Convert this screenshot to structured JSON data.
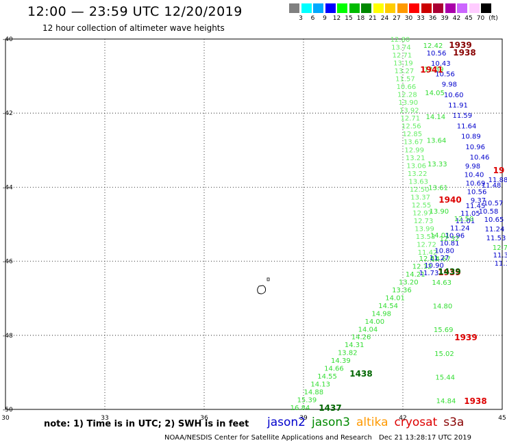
{
  "header": {
    "title": "12:00 — 23:59 UTC 12/20/2019",
    "subtitle": "12 hour collection of altimeter wave heights"
  },
  "legend": {
    "unit": "(ft)",
    "colors": [
      "#808080",
      "#00ffff",
      "#00aaff",
      "#0000ff",
      "#00ff00",
      "#00bb00",
      "#008800",
      "#ffff00",
      "#ffcc00",
      "#ff9900",
      "#ff0000",
      "#cc0000",
      "#aa0033",
      "#aa00aa",
      "#cc66ff",
      "#ffccff",
      "#000000"
    ],
    "labels": [
      "3",
      "6",
      "9",
      "12",
      "15",
      "18",
      "21",
      "24",
      "27",
      "30",
      "33",
      "36",
      "39",
      "42",
      "45",
      "70"
    ]
  },
  "axes": {
    "x_labels": [
      "30",
      "33",
      "36",
      "39",
      "42",
      "45"
    ],
    "y_labels": [
      "-40",
      "-42",
      "-44",
      "-46",
      "-48",
      "-50"
    ]
  },
  "tracks": {
    "jason3_south": {
      "color": "#33dd33",
      "values": [
        "16.84",
        "15.39",
        "14.88",
        "14.13",
        "14.55",
        "14.66",
        "14.39",
        "13.82",
        "14.31",
        "14.26",
        "14.04",
        "14.00",
        "14.98",
        "14.54",
        "14.01",
        "13.36",
        "13.20",
        "14.21",
        "12.12",
        "12.61"
      ]
    },
    "jason3_north": {
      "color": "#66ee66",
      "values": [
        "12.80",
        "13.74",
        "12.71",
        "13.19",
        "13.27",
        "11.57",
        "10.66",
        "12.28",
        "13.90",
        "13.92",
        "12.71",
        "12.56",
        "12.85",
        "13.67",
        "12.99",
        "13.21",
        "13.06",
        "13.22",
        "13.63",
        "12.50",
        "13.37",
        "12.55",
        "12.97",
        "12.73",
        "13.99",
        "13.53",
        "12.72",
        "11.42"
      ]
    },
    "jason3_mid": {
      "color": "#33dd33",
      "values": [
        "12.42",
        "12.39",
        "14.05",
        "14.14",
        "13.64",
        "13.33",
        "13.61",
        "13.90",
        "14.01",
        "14.67",
        "14.63",
        "14.80",
        "15.69",
        "15.02",
        "15.44",
        "14.84"
      ]
    },
    "jason2": {
      "color": "#0000cc",
      "values": [
        "10.56",
        "10.43",
        "10.56",
        "9.98",
        "10.60",
        "11.91",
        "11.59",
        "11.64",
        "10.89",
        "10.96",
        "10.46",
        "9.98",
        "10.40",
        "10.69",
        "10.56",
        "9.37",
        "11.45",
        "11.05",
        "11.01",
        "11.24",
        "10.96",
        "10.81",
        "10.80",
        "11.27",
        "10.90",
        "11.73",
        "11.88",
        "11.48",
        "10.57",
        "10.58",
        "10.65",
        "11.24",
        "11.53",
        "11.33",
        "11.15",
        "10.4",
        "11."
      ]
    },
    "jason3_green_extra": {
      "color": "#33dd33",
      "values": [
        "12.50",
        "12.32",
        "12.7"
      ]
    }
  },
  "passes": [
    {
      "label": "1939",
      "color": "#880000"
    },
    {
      "label": "1938",
      "color": "#880000"
    },
    {
      "label": "1941",
      "color": "#dd0000"
    },
    {
      "label": "1940",
      "color": "#dd0000"
    },
    {
      "label": "1939",
      "color": "#dd0000"
    },
    {
      "label": "1939",
      "color": "#dd0000"
    },
    {
      "label": "1938",
      "color": "#dd0000"
    },
    {
      "label": "1439",
      "color": "#006600"
    },
    {
      "label": "1438",
      "color": "#006600"
    },
    {
      "label": "1437",
      "color": "#006600"
    },
    {
      "label": "19",
      "color": "#dd0000"
    }
  ],
  "note": "note:  1) Time is in UTC;  2) SWH is in feet",
  "satellites": [
    {
      "name": "jason2",
      "color": "#0000cc"
    },
    {
      "name": "jason3",
      "color": "#008800"
    },
    {
      "name": "altika",
      "color": "#ff9900"
    },
    {
      "name": "cryosat",
      "color": "#dd0000"
    },
    {
      "name": "s3a",
      "color": "#880000"
    }
  ],
  "footer": {
    "left": "NOAA/NESDIS Center for Satellite Applications and Research",
    "right": "Dec 21 13:28:17 UTC 2019"
  }
}
